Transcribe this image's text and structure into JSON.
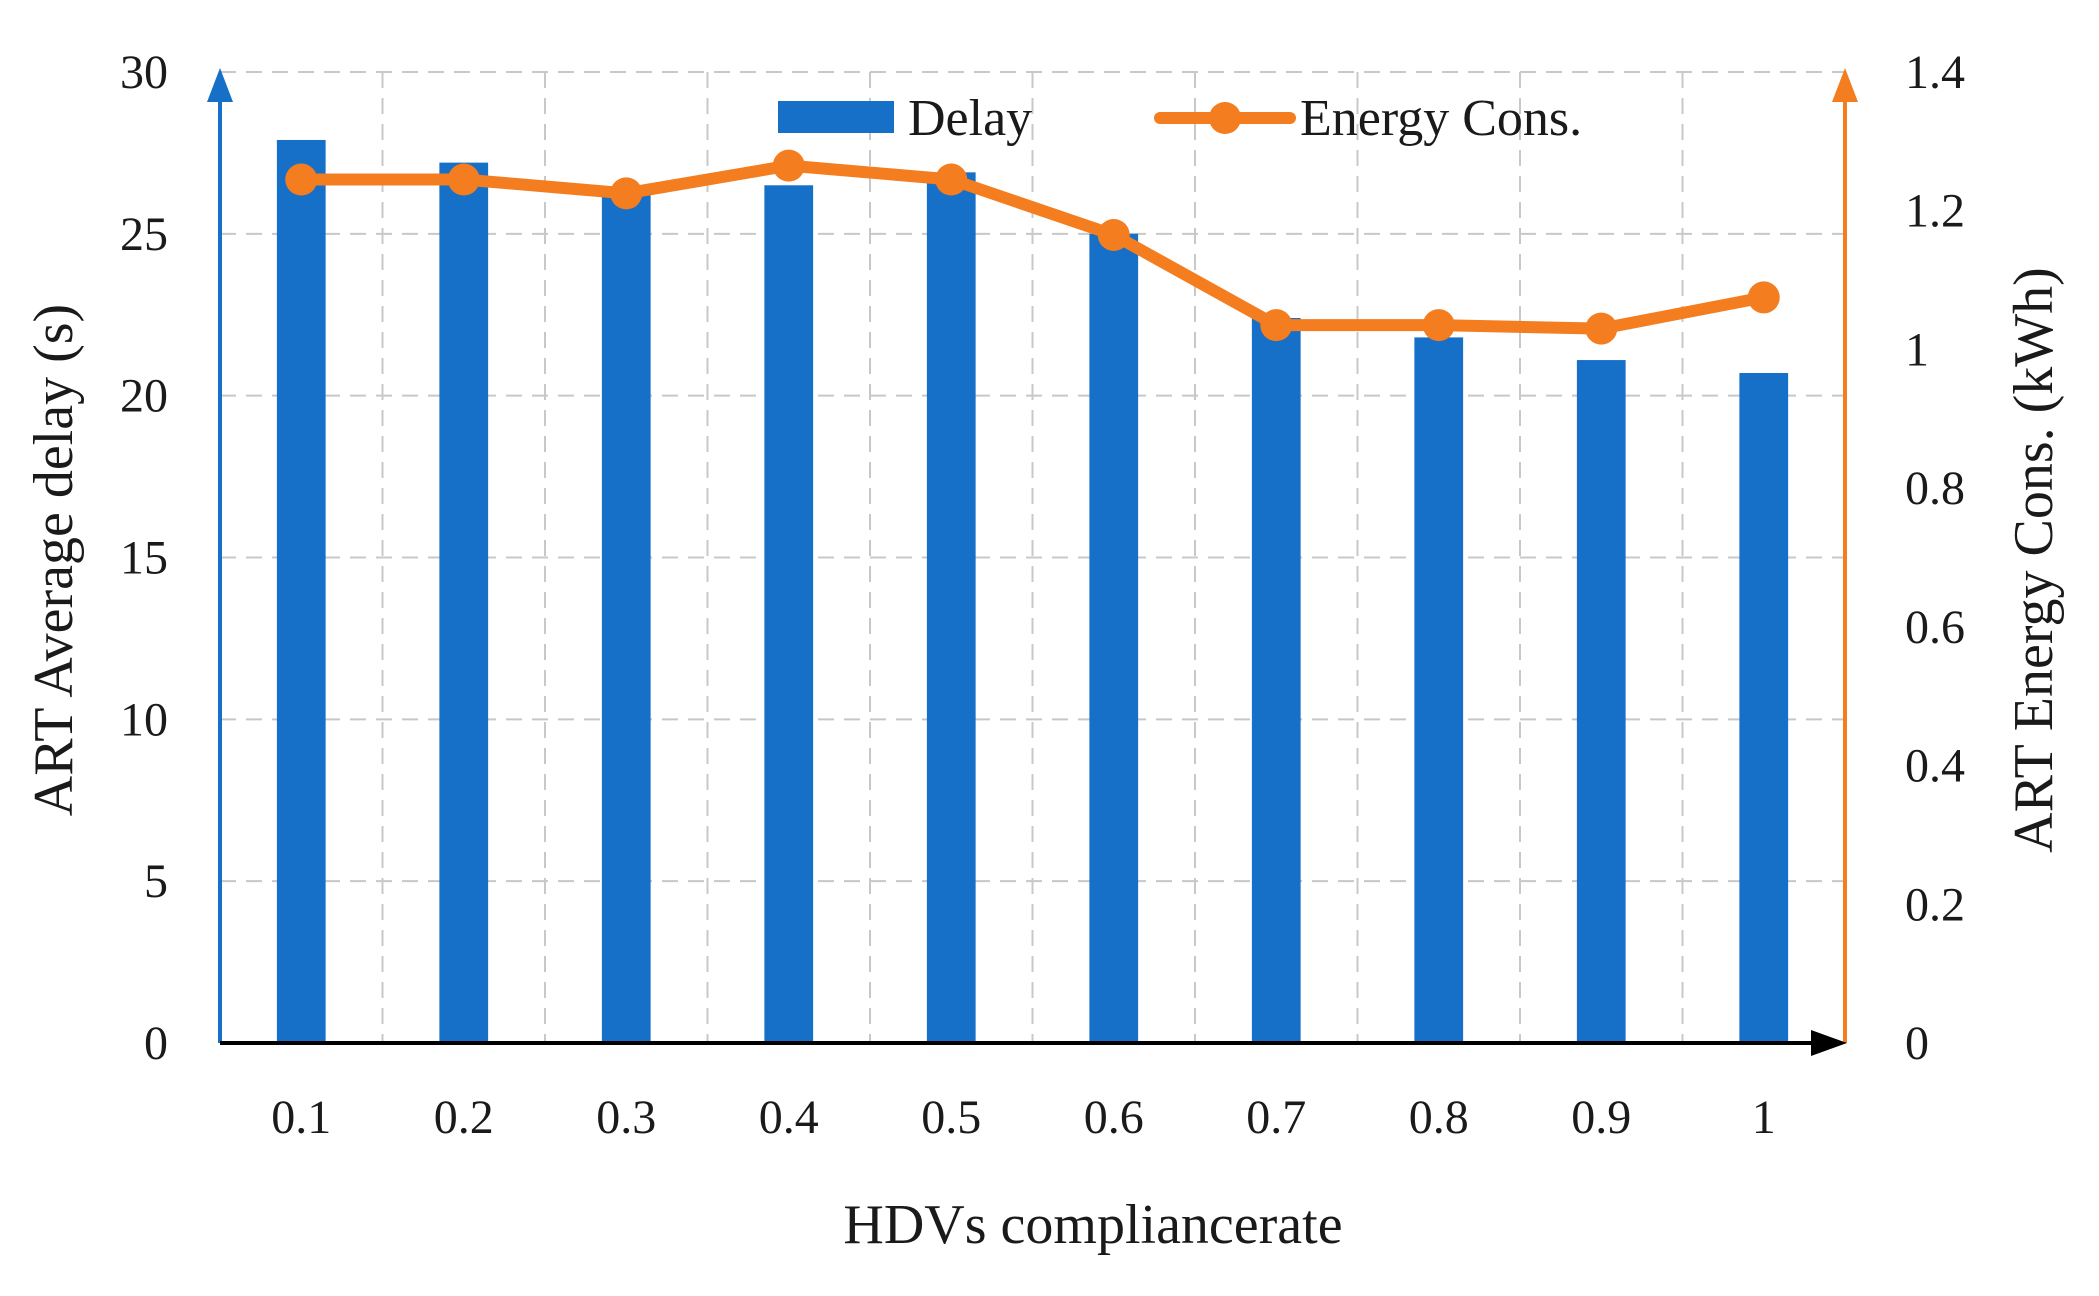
{
  "chart_data": {
    "type": "bar",
    "categories": [
      "0.1",
      "0.2",
      "0.3",
      "0.4",
      "0.5",
      "0.6",
      "0.7",
      "0.8",
      "0.9",
      "1"
    ],
    "series": [
      {
        "name": "Delay",
        "type": "bar",
        "axis": "left",
        "color": "#1670C8",
        "values": [
          27.9,
          27.2,
          26.2,
          26.5,
          26.9,
          25.0,
          22.4,
          21.8,
          21.1,
          20.7
        ]
      },
      {
        "name": "Energy Cons.",
        "type": "line",
        "axis": "right",
        "color": "#F47D20",
        "values": [
          1.245,
          1.245,
          1.225,
          1.265,
          1.245,
          1.165,
          1.035,
          1.035,
          1.03,
          1.075
        ]
      }
    ],
    "xlabel": "HDVs compliancerate",
    "ylabel": "ART Average delay (s)",
    "y2label": "ART Energy Cons. (kWh)",
    "ylim": [
      0,
      30
    ],
    "y2lim": [
      0,
      1.4
    ],
    "yticks": [
      "0",
      "5",
      "10",
      "15",
      "20",
      "25",
      "30"
    ],
    "y2ticks": [
      "0",
      "0.2",
      "0.4",
      "0.6",
      "0.8",
      "1",
      "1.2",
      "1.4"
    ],
    "grid": true,
    "legend_position": "top",
    "left_axis_color": "#1670C8",
    "right_axis_color": "#F47D20",
    "x_axis_color": "#000000"
  }
}
